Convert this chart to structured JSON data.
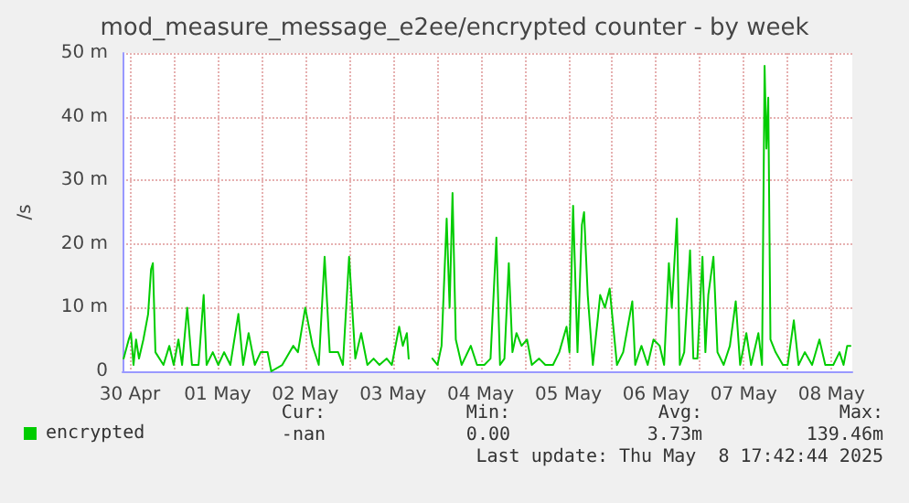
{
  "chart_data": {
    "type": "line",
    "title": "mod_measure_message_e2ee/encrypted counter - by week",
    "ylabel": "/s",
    "xlim": [
      "2025-04-30T10:00",
      "2025-05-08T17:42"
    ],
    "xticks": [
      {
        "value": "2025-04-30T12:00",
        "label": "30 Apr"
      },
      {
        "value": "2025-05-01T00:00",
        "label": null
      },
      {
        "value": "2025-05-01T12:00",
        "label": "01 May"
      },
      {
        "value": "2025-05-02T00:00",
        "label": null
      },
      {
        "value": "2025-05-02T12:00",
        "label": "02 May"
      },
      {
        "value": "2025-05-03T00:00",
        "label": null
      },
      {
        "value": "2025-05-03T12:00",
        "label": "03 May"
      },
      {
        "value": "2025-05-04T00:00",
        "label": null
      },
      {
        "value": "2025-05-04T12:00",
        "label": "04 May"
      },
      {
        "value": "2025-05-05T00:00",
        "label": null
      },
      {
        "value": "2025-05-05T12:00",
        "label": "05 May"
      },
      {
        "value": "2025-05-06T00:00",
        "label": null
      },
      {
        "value": "2025-05-06T12:00",
        "label": "06 May"
      },
      {
        "value": "2025-05-07T00:00",
        "label": null
      },
      {
        "value": "2025-05-07T12:00",
        "label": "07 May"
      },
      {
        "value": "2025-05-08T00:00",
        "label": null
      },
      {
        "value": "2025-05-08T12:00",
        "label": "08 May"
      }
    ],
    "ylim": [
      0,
      50
    ],
    "yticks": [
      0,
      {
        "value": 10,
        "label": "10 m"
      },
      {
        "value": 20,
        "label": "20 m"
      },
      {
        "value": 30,
        "label": "30 m"
      },
      {
        "value": 40,
        "label": "40 m"
      },
      {
        "value": 50,
        "label": "50 m"
      }
    ],
    "grid": true,
    "legend": "bottom left",
    "marker": "none",
    "line_style": "solid",
    "annotations": [
      "Cur:",
      "Min:",
      "Avg:",
      "Max:",
      "-nan",
      "0.00",
      "3.73m",
      "139.46m",
      "Last update: Thu May  8 17:42:44 2025"
    ],
    "series": [
      {
        "name": "encrypted",
        "color": "#00cc00",
        "x": [
          "2025-04-30T10:18",
          "2025-04-30T11:42",
          "2025-04-30T12:18",
          "2025-04-30T13:00",
          "2025-04-30T13:42",
          "2025-04-30T14:30",
          "2025-04-30T15:42",
          "2025-04-30T17:00",
          "2025-04-30T17:48",
          "2025-04-30T18:18",
          "2025-04-30T19:00",
          "2025-04-30T21:12",
          "2025-04-30T22:48",
          "2025-05-01T00:00",
          "2025-05-01T01:18",
          "2025-05-01T02:18",
          "2025-05-01T03:42",
          "2025-05-01T05:00",
          "2025-05-01T06:48",
          "2025-05-01T08:12",
          "2025-05-01T09:00",
          "2025-05-01T10:42",
          "2025-05-01T12:12",
          "2025-05-01T13:48",
          "2025-05-01T15:30",
          "2025-05-01T17:42",
          "2025-05-01T19:00",
          "2025-05-01T20:30",
          "2025-05-01T22:12",
          "2025-05-01T23:48",
          "2025-05-02T01:42",
          "2025-05-02T02:42",
          "2025-05-02T05:42",
          "2025-05-02T08:42",
          "2025-05-02T10:00",
          "2025-05-02T12:00",
          "2025-05-02T14:00",
          "2025-05-02T15:42",
          "2025-05-02T17:18",
          "2025-05-02T18:42",
          "2025-05-02T21:00",
          "2025-05-02T22:18",
          "2025-05-03T00:00",
          "2025-05-03T01:42",
          "2025-05-03T03:18",
          "2025-05-03T05:00",
          "2025-05-03T06:42",
          "2025-05-03T08:18",
          "2025-05-03T10:18",
          "2025-05-03T11:42",
          "2025-05-03T13:42",
          "2025-05-03T14:42",
          "2025-05-03T15:48",
          "2025-05-03T16:18",
          "2025-05-03T19:00",
          "2025-05-03T22:48",
          "2025-05-04T00:12",
          "2025-05-04T01:18",
          "2025-05-04T02:42",
          "2025-05-04T03:30",
          "2025-05-04T04:18",
          "2025-05-04T05:12",
          "2025-05-04T06:48",
          "2025-05-04T09:18",
          "2025-05-04T11:00",
          "2025-05-04T13:00",
          "2025-05-04T14:42",
          "2025-05-04T16:18",
          "2025-05-04T17:18",
          "2025-05-04T18:30",
          "2025-05-04T19:42",
          "2025-05-04T20:42",
          "2025-05-04T21:48",
          "2025-05-04T23:12",
          "2025-05-05T00:42",
          "2025-05-05T02:00",
          "2025-05-05T04:00",
          "2025-05-05T05:42",
          "2025-05-05T07:48",
          "2025-05-05T09:30",
          "2025-05-05T11:30",
          "2025-05-05T12:18",
          "2025-05-05T13:18",
          "2025-05-05T14:30",
          "2025-05-05T15:42",
          "2025-05-05T16:18",
          "2025-05-05T17:18",
          "2025-05-05T18:42",
          "2025-05-05T20:00",
          "2025-05-05T20:42",
          "2025-05-05T22:00",
          "2025-05-05T23:18",
          "2025-05-06T01:18",
          "2025-05-06T03:00",
          "2025-05-06T05:30",
          "2025-05-06T06:18",
          "2025-05-06T08:00",
          "2025-05-06T09:42",
          "2025-05-06T11:18",
          "2025-05-06T13:00",
          "2025-05-06T14:12",
          "2025-05-06T15:30",
          "2025-05-06T16:18",
          "2025-05-06T17:42",
          "2025-05-06T18:30",
          "2025-05-06T19:42",
          "2025-05-06T21:18",
          "2025-05-06T22:12",
          "2025-05-06T23:18",
          "2025-05-07T00:42",
          "2025-05-07T01:30",
          "2025-05-07T02:18",
          "2025-05-07T03:42",
          "2025-05-07T04:48",
          "2025-05-07T06:30",
          "2025-05-07T08:12",
          "2025-05-07T09:48",
          "2025-05-07T11:00",
          "2025-05-07T12:42",
          "2025-05-07T14:00",
          "2025-05-07T16:00",
          "2025-05-07T17:00",
          "2025-05-07T17:42",
          "2025-05-07T18:12",
          "2025-05-07T18:42",
          "2025-05-07T19:18",
          "2025-05-07T20:42",
          "2025-05-07T22:42",
          "2025-05-08T00:00",
          "2025-05-08T01:42",
          "2025-05-08T03:00",
          "2025-05-08T04:42",
          "2025-05-08T06:42",
          "2025-05-08T08:42",
          "2025-05-08T10:18",
          "2025-05-08T12:30",
          "2025-05-08T14:12",
          "2025-05-08T15:18",
          "2025-05-08T16:18",
          "2025-05-08T17:12"
        ],
        "values": [
          2,
          5,
          6,
          1,
          5,
          2,
          5,
          9,
          16,
          17,
          3,
          1,
          4,
          1,
          5,
          1,
          10,
          1,
          1,
          12,
          1,
          3,
          1,
          3,
          1,
          9,
          1,
          6,
          1,
          3,
          3,
          0,
          1,
          4,
          3,
          10,
          4,
          1,
          18,
          3,
          3,
          1,
          18,
          2,
          6,
          1,
          2,
          1,
          2,
          1,
          7,
          4,
          6,
          2,
          null,
          2,
          1,
          4,
          24,
          10,
          28,
          5,
          1,
          4,
          1,
          1,
          2,
          21,
          1,
          2,
          17,
          3,
          6,
          4,
          5,
          1,
          2,
          1,
          1,
          3,
          7,
          3,
          26,
          3,
          23,
          25,
          12,
          1,
          8,
          12,
          10,
          13,
          1,
          3,
          11,
          1,
          4,
          1,
          5,
          4,
          1,
          17,
          10,
          24,
          1,
          3,
          19,
          2,
          2,
          18,
          3,
          12,
          18,
          3,
          1,
          4,
          11,
          1,
          6,
          1,
          6,
          1,
          48,
          35,
          43,
          5,
          3,
          1,
          1,
          8,
          1,
          3,
          1,
          5,
          1,
          1,
          3,
          1,
          4,
          4
        ]
      }
    ]
  }
}
